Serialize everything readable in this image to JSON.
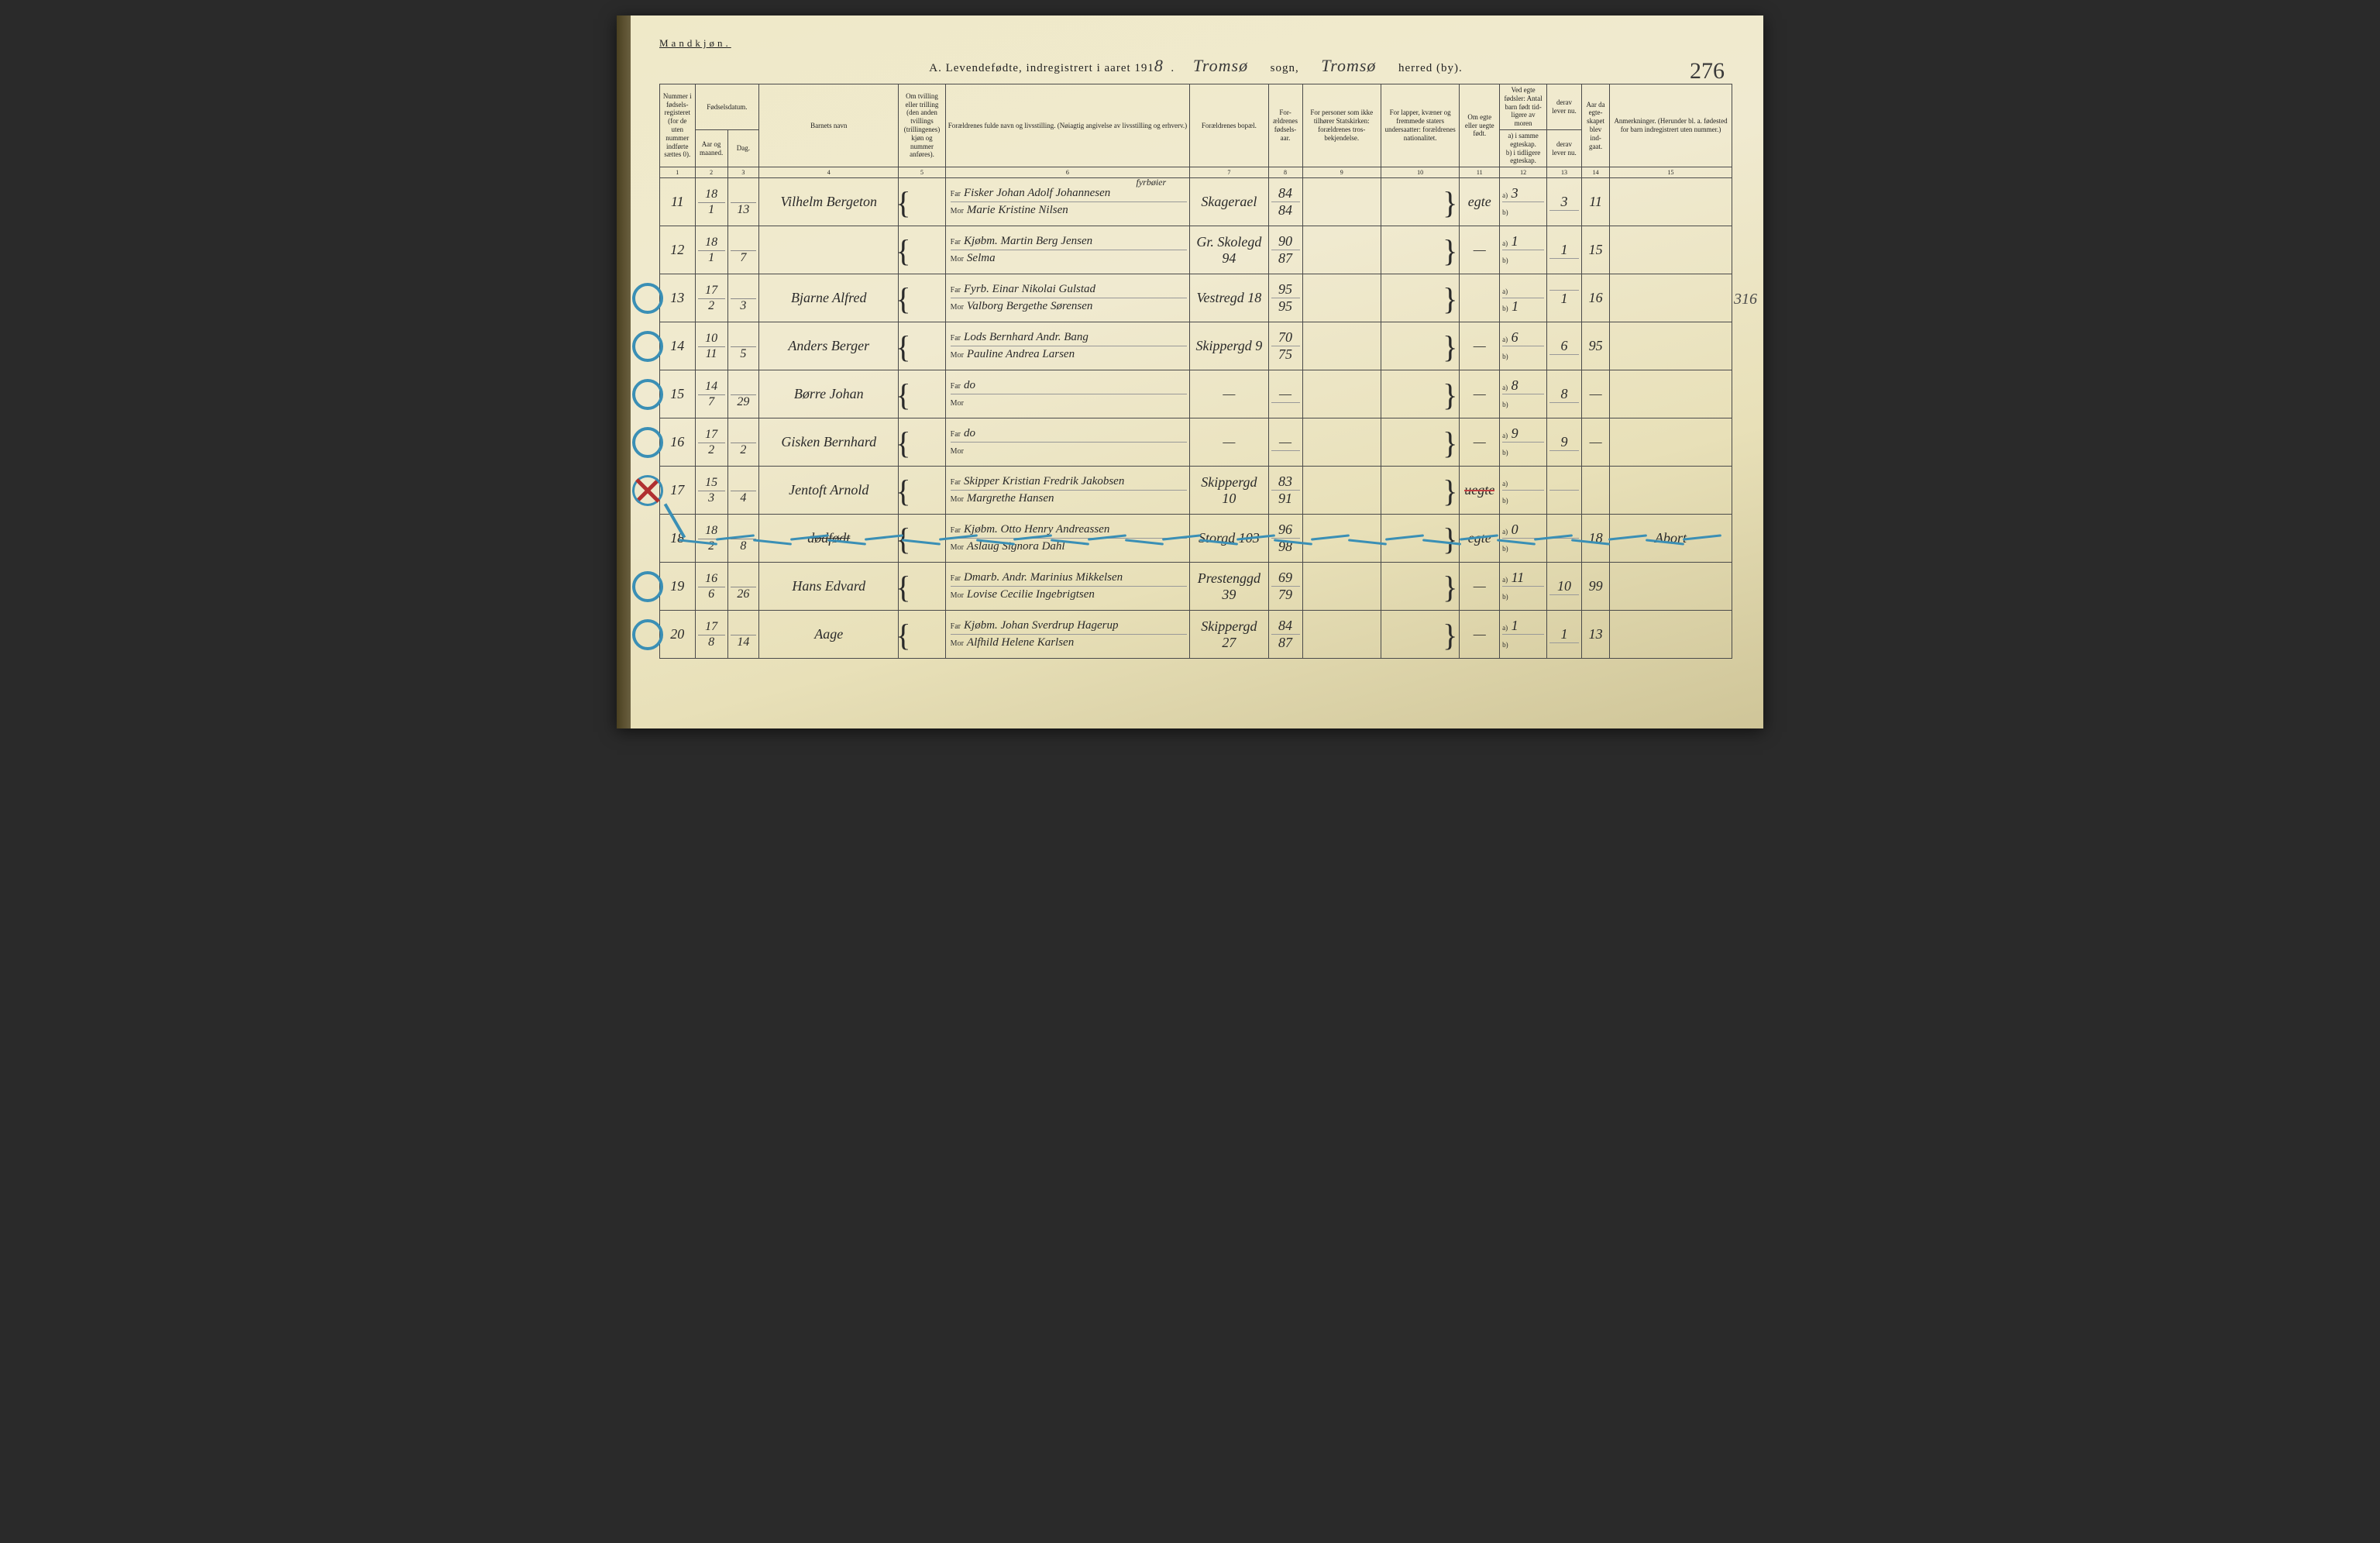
{
  "page": {
    "gender_label": "Mandkjøn.",
    "title_prefix": "A. Levendefødte, indregistrert i aaret 191",
    "year_digit": "8",
    "sogn_hw": "Tromsø",
    "sogn_label": "sogn,",
    "herred_hw": "Tromsø",
    "herred_label": "herred (by).",
    "page_number": "276"
  },
  "headers": {
    "c1": "Nummer i fødsels-registeret (for de uten nummer indførte sættes 0).",
    "c2_group": "Fødselsdatum.",
    "c2": "Aar og maaned.",
    "c3": "Dag.",
    "c4": "Barnets navn",
    "c5": "Om tvilling eller trilling (den anden tvillings (trillingenes) kjøn og nummer anføres).",
    "c6": "Forældrenes fulde navn og livsstilling. (Nøiagtig angivelse av livsstilling og erhverv.)",
    "c7": "Forældrenes bopæl.",
    "c8": "For-ældrenes fødsels-aar.",
    "c9": "For personer som ikke tilhører Statskirken: forældrenes tros-bekjendelse.",
    "c10": "For lapper, kvæner og fremmede staters undersaatter: forældrenes nationalitet.",
    "c11": "Om egte eller uegte født.",
    "c12_group": "Ved egte fødsler: Antal barn født tid-ligere av moren",
    "c12a": "a) i samme egteskap.",
    "c12b": "b) i tidligere egteskap.",
    "c13_group": "derav lever nu.",
    "c13a": "derav lever nu.",
    "c14": "Aar da egte-skapet blev ind-gaat.",
    "c15": "Anmerkninger. (Herunder bl. a. fødested for barn indregistrert uten nummer.)"
  },
  "colnums": [
    "1",
    "2",
    "3",
    "4",
    "5",
    "6",
    "7",
    "8",
    "9",
    "10",
    "11",
    "12",
    "13",
    "14",
    "15"
  ],
  "far_label": "Far",
  "mor_label": "Mor",
  "sub_a": "a)",
  "sub_b": "b)",
  "rows": [
    {
      "num": "11",
      "yr": "18",
      "mo": "1",
      "day": "13",
      "name": "Vilhelm Bergeton",
      "far": "Fisker Johan Adolf Johannesen",
      "mor": "Marie Kristine Nilsen",
      "far_extra": "fyrbøier",
      "bopael": "Skagerael",
      "by_f": "84",
      "by_m": "84",
      "c11": "egte",
      "c12a": "3",
      "c12b": "",
      "c13a": "3",
      "c13b": "",
      "c14": "11",
      "c15": "",
      "mark": "none"
    },
    {
      "num": "12",
      "yr": "18",
      "mo": "1",
      "day": "7",
      "name": "",
      "far": "Kjøbm. Martin Berg Jensen",
      "mor": "Selma",
      "bopael": "Gr. Skolegd 94",
      "by_f": "90",
      "by_m": "87",
      "c11": "—",
      "c12a": "1",
      "c12b": "",
      "c13a": "1",
      "c13b": "",
      "c14": "15",
      "c15": "",
      "mark": "none"
    },
    {
      "num": "13",
      "yr": "17",
      "mo": "2",
      "day": "3",
      "name": "Bjarne Alfred",
      "far": "Fyrb. Einar Nikolai Gulstad",
      "mor": "Valborg Bergethe Sørensen",
      "bopael": "Vestregd 18",
      "by_f": "95",
      "by_m": "95",
      "c11": "",
      "c12a": "",
      "c12b": "1",
      "c13a": "",
      "c13b": "1",
      "c14": "16",
      "c15": "",
      "mark": "circle",
      "margin_note": "316"
    },
    {
      "num": "14",
      "yr": "10",
      "mo": "11",
      "day": "5",
      "name": "Anders Berger",
      "far": "Lods Bernhard Andr. Bang",
      "mor": "Pauline Andrea Larsen",
      "bopael": "Skippergd 9",
      "by_f": "70",
      "by_m": "75",
      "c11": "—",
      "c12a": "6",
      "c12b": "",
      "c13a": "6",
      "c13b": "",
      "c14": "95",
      "c15": "",
      "mark": "circle"
    },
    {
      "num": "15",
      "yr": "14",
      "mo": "7",
      "day": "29",
      "name": "Børre Johan",
      "far": "do",
      "mor": "",
      "bopael": "—",
      "by_f": "—",
      "by_m": "",
      "c11": "—",
      "c12a": "8",
      "c12b": "",
      "c13a": "8",
      "c13b": "",
      "c14": "—",
      "c15": "",
      "mark": "circle"
    },
    {
      "num": "16",
      "yr": "17",
      "mo": "2",
      "day": "2",
      "name": "Gisken Bernhard",
      "far": "do",
      "mor": "",
      "bopael": "—",
      "by_f": "—",
      "by_m": "",
      "c11": "—",
      "c12a": "9",
      "c12b": "",
      "c13a": "9",
      "c13b": "",
      "c14": "—",
      "c15": "",
      "mark": "circle"
    },
    {
      "num": "17",
      "yr": "15",
      "mo": "3",
      "day": "4",
      "name": "Jentoft Arnold",
      "far": "Skipper Kristian Fredrik Jakobsen",
      "mor": "Margrethe Hansen",
      "bopael": "Skippergd 10",
      "by_f": "83",
      "by_m": "91",
      "c11": "uegte",
      "c11_strike": true,
      "c12a": "",
      "c12b": "",
      "c13a": "",
      "c13b": "",
      "c14": "",
      "c15": "",
      "mark": "x"
    },
    {
      "num": "18",
      "yr": "18",
      "mo": "2",
      "day": "8",
      "name": "dødfødt",
      "name_strike": true,
      "far": "Kjøbm. Otto Henry Andreassen",
      "mor": "Aslaug Signora Dahl",
      "bopael": "Storgd 103",
      "by_f": "96",
      "by_m": "98",
      "c11": "egte",
      "c12a": "0",
      "c12b": "",
      "c13a": "",
      "c13b": "",
      "c14": "18",
      "c15": "Abort",
      "mark": "none",
      "wavy": true
    },
    {
      "num": "19",
      "yr": "16",
      "mo": "6",
      "day": "26",
      "name": "Hans Edvard",
      "far": "Dmarb. Andr. Marinius Mikkelsen",
      "mor": "Lovise Cecilie Ingebrigtsen",
      "bopael": "Prestenggd 39",
      "by_f": "69",
      "by_m": "79",
      "c11": "—",
      "c12a": "11",
      "c12b": "",
      "c13a": "10",
      "c13b": "",
      "c14": "99",
      "c15": "",
      "mark": "circle"
    },
    {
      "num": "20",
      "yr": "17",
      "mo": "8",
      "day": "14",
      "name": "Aage",
      "far": "Kjøbm. Johan Sverdrup Hagerup",
      "mor": "Alfhild Helene Karlsen",
      "bopael": "Skippergd 27",
      "by_f": "84",
      "by_m": "87",
      "c11": "—",
      "c12a": "1",
      "c12b": "",
      "c13a": "1",
      "c13b": "",
      "c14": "13",
      "c15": "",
      "mark": "circle"
    }
  ],
  "colors": {
    "paper": "#efe9c8",
    "ink": "#2a2a2a",
    "blue": "#3a8fb5",
    "red": "#b03030",
    "rule": "#4a4a4a"
  }
}
